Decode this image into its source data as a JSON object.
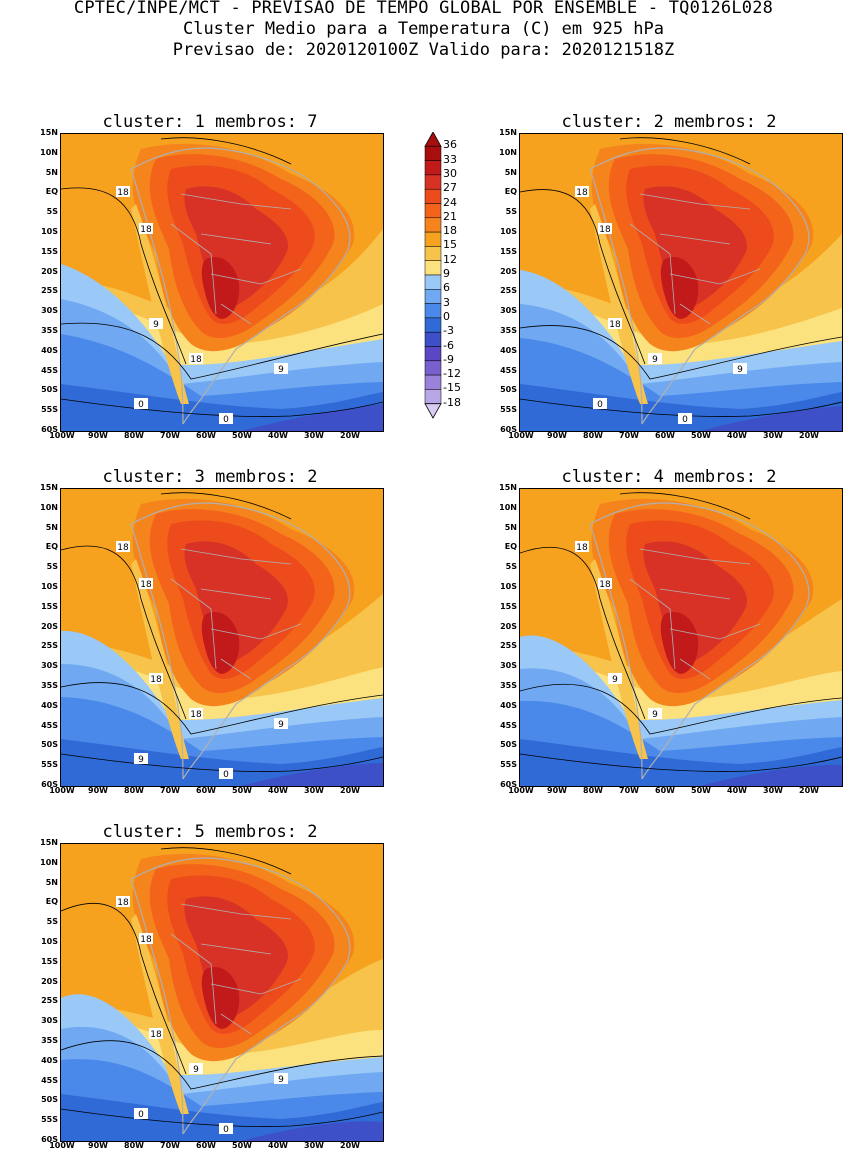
{
  "header": {
    "line1": "CPTEC/INPE/MCT - PREVISAO DE TEMPO GLOBAL POR ENSEMBLE - TQ0126L028",
    "line2": "Cluster Medio para a Temperatura (C) em 925 hPa",
    "line3": "Previsao de: 2020120100Z   Valido para: 2020121518Z"
  },
  "lat_labels": [
    "15N",
    "10N",
    "5N",
    "EQ",
    "5S",
    "10S",
    "15S",
    "20S",
    "25S",
    "30S",
    "35S",
    "40S",
    "45S",
    "50S",
    "55S",
    "60S"
  ],
  "lon_labels": [
    "100W",
    "90W",
    "80W",
    "70W",
    "60W",
    "50W",
    "40W",
    "30W",
    "20W"
  ],
  "panels": [
    {
      "title": "cluster: 1   membros: 7",
      "contour_labels": [
        "18",
        "18",
        "9",
        "18",
        "9",
        "0",
        "0"
      ]
    },
    {
      "title": "cluster: 2   membros: 2",
      "contour_labels": [
        "18",
        "18",
        "18",
        "9",
        "9",
        "0",
        "0"
      ]
    },
    {
      "title": "cluster: 3   membros: 2",
      "contour_labels": [
        "18",
        "18",
        "18",
        "18",
        "9",
        "9",
        "0"
      ]
    },
    {
      "title": "cluster: 4   membros: 2",
      "contour_labels": [
        "18",
        "18",
        "9",
        "9"
      ]
    },
    {
      "title": "cluster: 5   membros: 2",
      "contour_labels": [
        "18",
        "18",
        "18",
        "9",
        "9",
        "0",
        "0"
      ]
    }
  ],
  "colorbar": {
    "labels": [
      "36",
      "33",
      "30",
      "27",
      "24",
      "21",
      "18",
      "15",
      "12",
      "9",
      "6",
      "3",
      "0",
      "-3",
      "-6",
      "-9",
      "-12",
      "-15",
      "-18"
    ],
    "colors": [
      "#a80e0e",
      "#c21a1a",
      "#d83226",
      "#ee4b1c",
      "#f3631a",
      "#f6841d",
      "#f6a21e",
      "#f8c34a",
      "#fbe27e",
      "#9ac8f7",
      "#70a9f2",
      "#4a89ea",
      "#2f6ad6",
      "#3d50c7",
      "#5a47c3",
      "#7a60cf",
      "#9a82da",
      "#b9a6e6",
      "#d8ccf2"
    ]
  },
  "colors": {
    "land_border": "#b0b0b0",
    "contour": "#000000"
  }
}
